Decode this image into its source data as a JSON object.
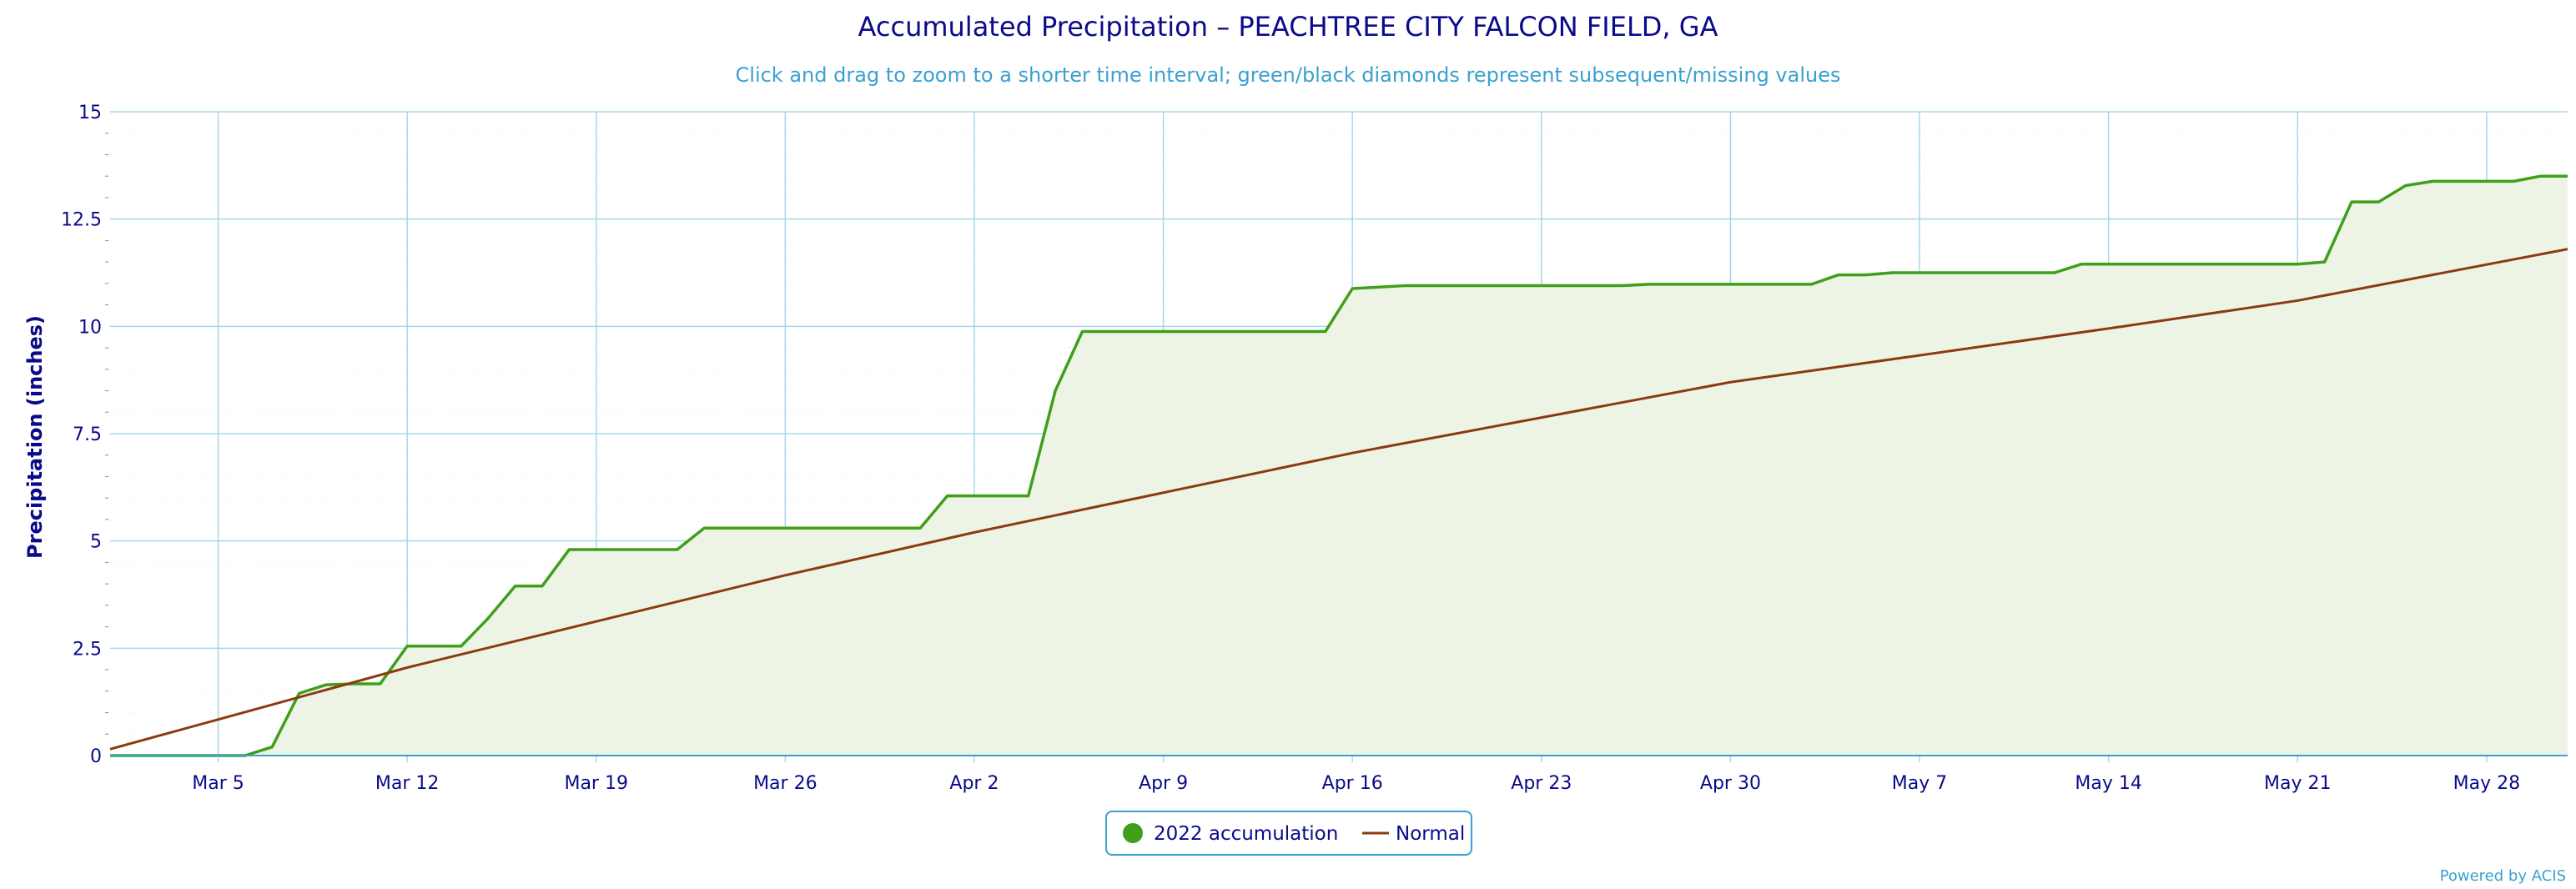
{
  "chart_data": {
    "type": "area",
    "title": "Accumulated Precipitation – PEACHTREE CITY FALCON FIELD, GA",
    "subtitle": "Click and drag to zoom to a shorter time interval; green/black diamonds represent subsequent/missing values",
    "ylabel": "Precipitation (inches)",
    "xlabel": "",
    "ylim": [
      0,
      15
    ],
    "yticks": [
      "0",
      "2.5",
      "5",
      "7.5",
      "10",
      "12.5",
      "15"
    ],
    "xticks": [
      "Mar 5",
      "Mar 12",
      "Mar 19",
      "Mar 26",
      "Apr 2",
      "Apr 9",
      "Apr 16",
      "Apr 23",
      "Apr 30",
      "May 7",
      "May 14",
      "May 21",
      "May 28"
    ],
    "x_start": "Mar 1",
    "x_end": "May 31",
    "grid": true,
    "legend_position": "bottom-center",
    "credit": "Powered by ACIS",
    "series": [
      {
        "name": "2022 accumulation",
        "color": "#3f9f1a",
        "fill": "#edf4e6",
        "points": [
          [
            "Mar 1",
            0
          ],
          [
            "Mar 6",
            0
          ],
          [
            "Mar 7",
            0.2
          ],
          [
            "Mar 8",
            1.45
          ],
          [
            "Mar 9",
            1.65
          ],
          [
            "Mar 10",
            1.67
          ],
          [
            "Mar 11",
            1.67
          ],
          [
            "Mar 12",
            2.55
          ],
          [
            "Mar 13",
            2.55
          ],
          [
            "Mar 14",
            2.55
          ],
          [
            "Mar 15",
            3.2
          ],
          [
            "Mar 16",
            3.95
          ],
          [
            "Mar 17",
            3.95
          ],
          [
            "Mar 18",
            4.8
          ],
          [
            "Mar 21",
            4.8
          ],
          [
            "Mar 22",
            4.8
          ],
          [
            "Mar 23",
            5.3
          ],
          [
            "Mar 31",
            5.3
          ],
          [
            "Apr 1",
            6.05
          ],
          [
            "Apr 4",
            6.05
          ],
          [
            "Apr 5",
            8.5
          ],
          [
            "Apr 6",
            9.88
          ],
          [
            "Apr 15",
            9.88
          ],
          [
            "Apr 16",
            10.88
          ],
          [
            "Apr 18",
            10.95
          ],
          [
            "Apr 26",
            10.95
          ],
          [
            "Apr 27",
            10.98
          ],
          [
            "May 3",
            10.98
          ],
          [
            "May 4",
            11.2
          ],
          [
            "May 5",
            11.2
          ],
          [
            "May 6",
            11.25
          ],
          [
            "May 12",
            11.25
          ],
          [
            "May 13",
            11.45
          ],
          [
            "May 21",
            11.45
          ],
          [
            "May 22",
            11.5
          ],
          [
            "May 23",
            12.9
          ],
          [
            "May 24",
            12.9
          ],
          [
            "May 25",
            13.28
          ],
          [
            "May 26",
            13.38
          ],
          [
            "May 29",
            13.38
          ],
          [
            "May 30",
            13.5
          ],
          [
            "May 31",
            13.5
          ]
        ]
      },
      {
        "name": "Normal",
        "color": "#8b3a0f",
        "points": [
          [
            "Mar 1",
            0.15
          ],
          [
            "Mar 12",
            2.05
          ],
          [
            "Mar 26",
            4.2
          ],
          [
            "Apr 2",
            5.2
          ],
          [
            "Apr 16",
            7.05
          ],
          [
            "Apr 30",
            8.7
          ],
          [
            "May 14",
            9.95
          ],
          [
            "May 21",
            10.6
          ],
          [
            "May 31",
            11.8
          ]
        ]
      }
    ]
  }
}
